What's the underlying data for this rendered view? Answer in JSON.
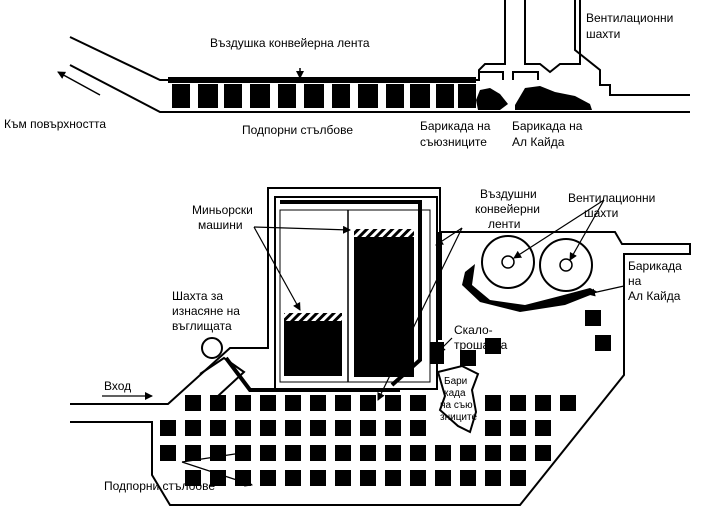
{
  "top": {
    "conveyor": "Въздушка конвейерна лента",
    "vent": [
      "Вентилационни",
      "шахти"
    ],
    "surface": "Към повърхността",
    "pillars": "Подпорни стълбове",
    "allied": [
      "Барикада на",
      "съюзниците"
    ],
    "qaeda": [
      "Барикада на",
      "Ал Кайда"
    ]
  },
  "bottom": {
    "miners": [
      "Миньорски",
      "машини"
    ],
    "conveyors": [
      "Въздушни",
      "конвейерни",
      "ленти"
    ],
    "vent": [
      "Вентилационни",
      "шахти"
    ],
    "qaeda": [
      "Барикада",
      "на",
      "Ал Кайда"
    ],
    "coalshaft": [
      "Шахта за",
      "изнасяне на",
      "въглищата"
    ],
    "crusher": [
      "Скало-",
      "трошачка"
    ],
    "entrance": "Вход",
    "allied": [
      "Бари",
      "када",
      "на съю",
      "зниците"
    ],
    "pillars": "Подпорни стълбове"
  }
}
